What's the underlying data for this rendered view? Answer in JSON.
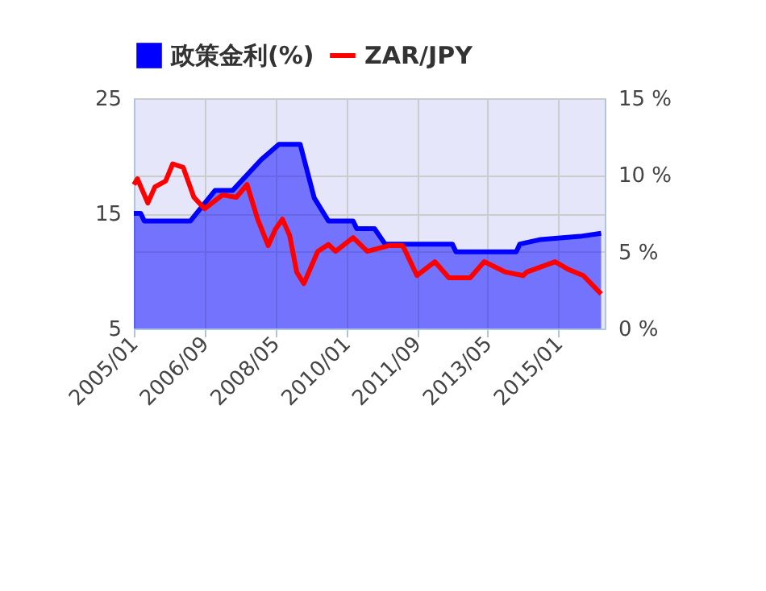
{
  "chart_data": {
    "type": "line",
    "xlim": [
      "2005-01",
      "2016-02"
    ],
    "xticks": [
      {
        "value": "2005-01",
        "label": "2005/01"
      },
      {
        "value": "2006-09",
        "label": "2006/09"
      },
      {
        "value": "2008-05",
        "label": "2008/05"
      },
      {
        "value": "2010-01",
        "label": "2010/01"
      },
      {
        "value": "2011-09",
        "label": "2011/09"
      },
      {
        "value": "2013-05",
        "label": "2013/05"
      },
      {
        "value": "2015-01",
        "label": "2015/01"
      }
    ],
    "ylim": [
      5,
      25
    ],
    "yticks": [
      5,
      15,
      25
    ],
    "y2lim": [
      0,
      15
    ],
    "y2ticks": [
      {
        "value": 0,
        "label": "0 %"
      },
      {
        "value": 5,
        "label": "5 %"
      },
      {
        "value": 10,
        "label": "10 %"
      },
      {
        "value": 15,
        "label": "15 %"
      }
    ],
    "grid": true,
    "legend": "top",
    "series": [
      {
        "name": "ZAR/JPY",
        "color": "#ff0000",
        "x": [
          "2005-01",
          "2005-02",
          "2005-05",
          "2005-07",
          "2005-10",
          "2005-12",
          "2006-03",
          "2006-06",
          "2006-09",
          "2007-02",
          "2007-06",
          "2007-09",
          "2007-12",
          "2008-03",
          "2008-05",
          "2008-07",
          "2008-09",
          "2008-11",
          "2009-01",
          "2009-05",
          "2009-08",
          "2009-10",
          "2010-03",
          "2010-07",
          "2011-01",
          "2011-05",
          "2011-09",
          "2012-02",
          "2012-06",
          "2012-12",
          "2013-04",
          "2013-10",
          "2014-03",
          "2014-04",
          "2014-12",
          "2015-04",
          "2015-08",
          "2016-01"
        ],
        "values": [
          17.5,
          18.0,
          15.9,
          17.3,
          17.8,
          19.3,
          19.0,
          16.4,
          15.4,
          16.6,
          16.4,
          17.5,
          14.5,
          12.2,
          13.6,
          14.5,
          13.1,
          9.9,
          8.9,
          11.7,
          12.3,
          11.7,
          12.9,
          11.7,
          12.2,
          12.2,
          9.6,
          10.8,
          9.4,
          9.4,
          10.8,
          9.9,
          9.6,
          9.9,
          10.8,
          10.1,
          9.6,
          8.0
        ]
      },
      {
        "name": "政策金利(%)",
        "type": "area",
        "axis": "y2",
        "color": "#0000ff",
        "x": [
          "2005-01",
          "2005-03",
          "2005-04",
          "2006-05",
          "2006-12",
          "2007-05",
          "2008-01",
          "2008-06",
          "2008-12",
          "2009-04",
          "2009-08",
          "2010-03",
          "2010-04",
          "2010-09",
          "2010-12",
          "2012-07",
          "2012-08",
          "2014-01",
          "2014-02",
          "2014-08",
          "2015-07",
          "2016-01"
        ],
        "values": [
          7.5,
          7.5,
          7.0,
          7.0,
          9.0,
          9.0,
          11.0,
          12.0,
          12.0,
          8.5,
          7.0,
          7.0,
          6.5,
          6.5,
          5.5,
          5.5,
          5.0,
          5.0,
          5.5,
          5.8,
          6.0,
          6.2
        ]
      }
    ]
  }
}
